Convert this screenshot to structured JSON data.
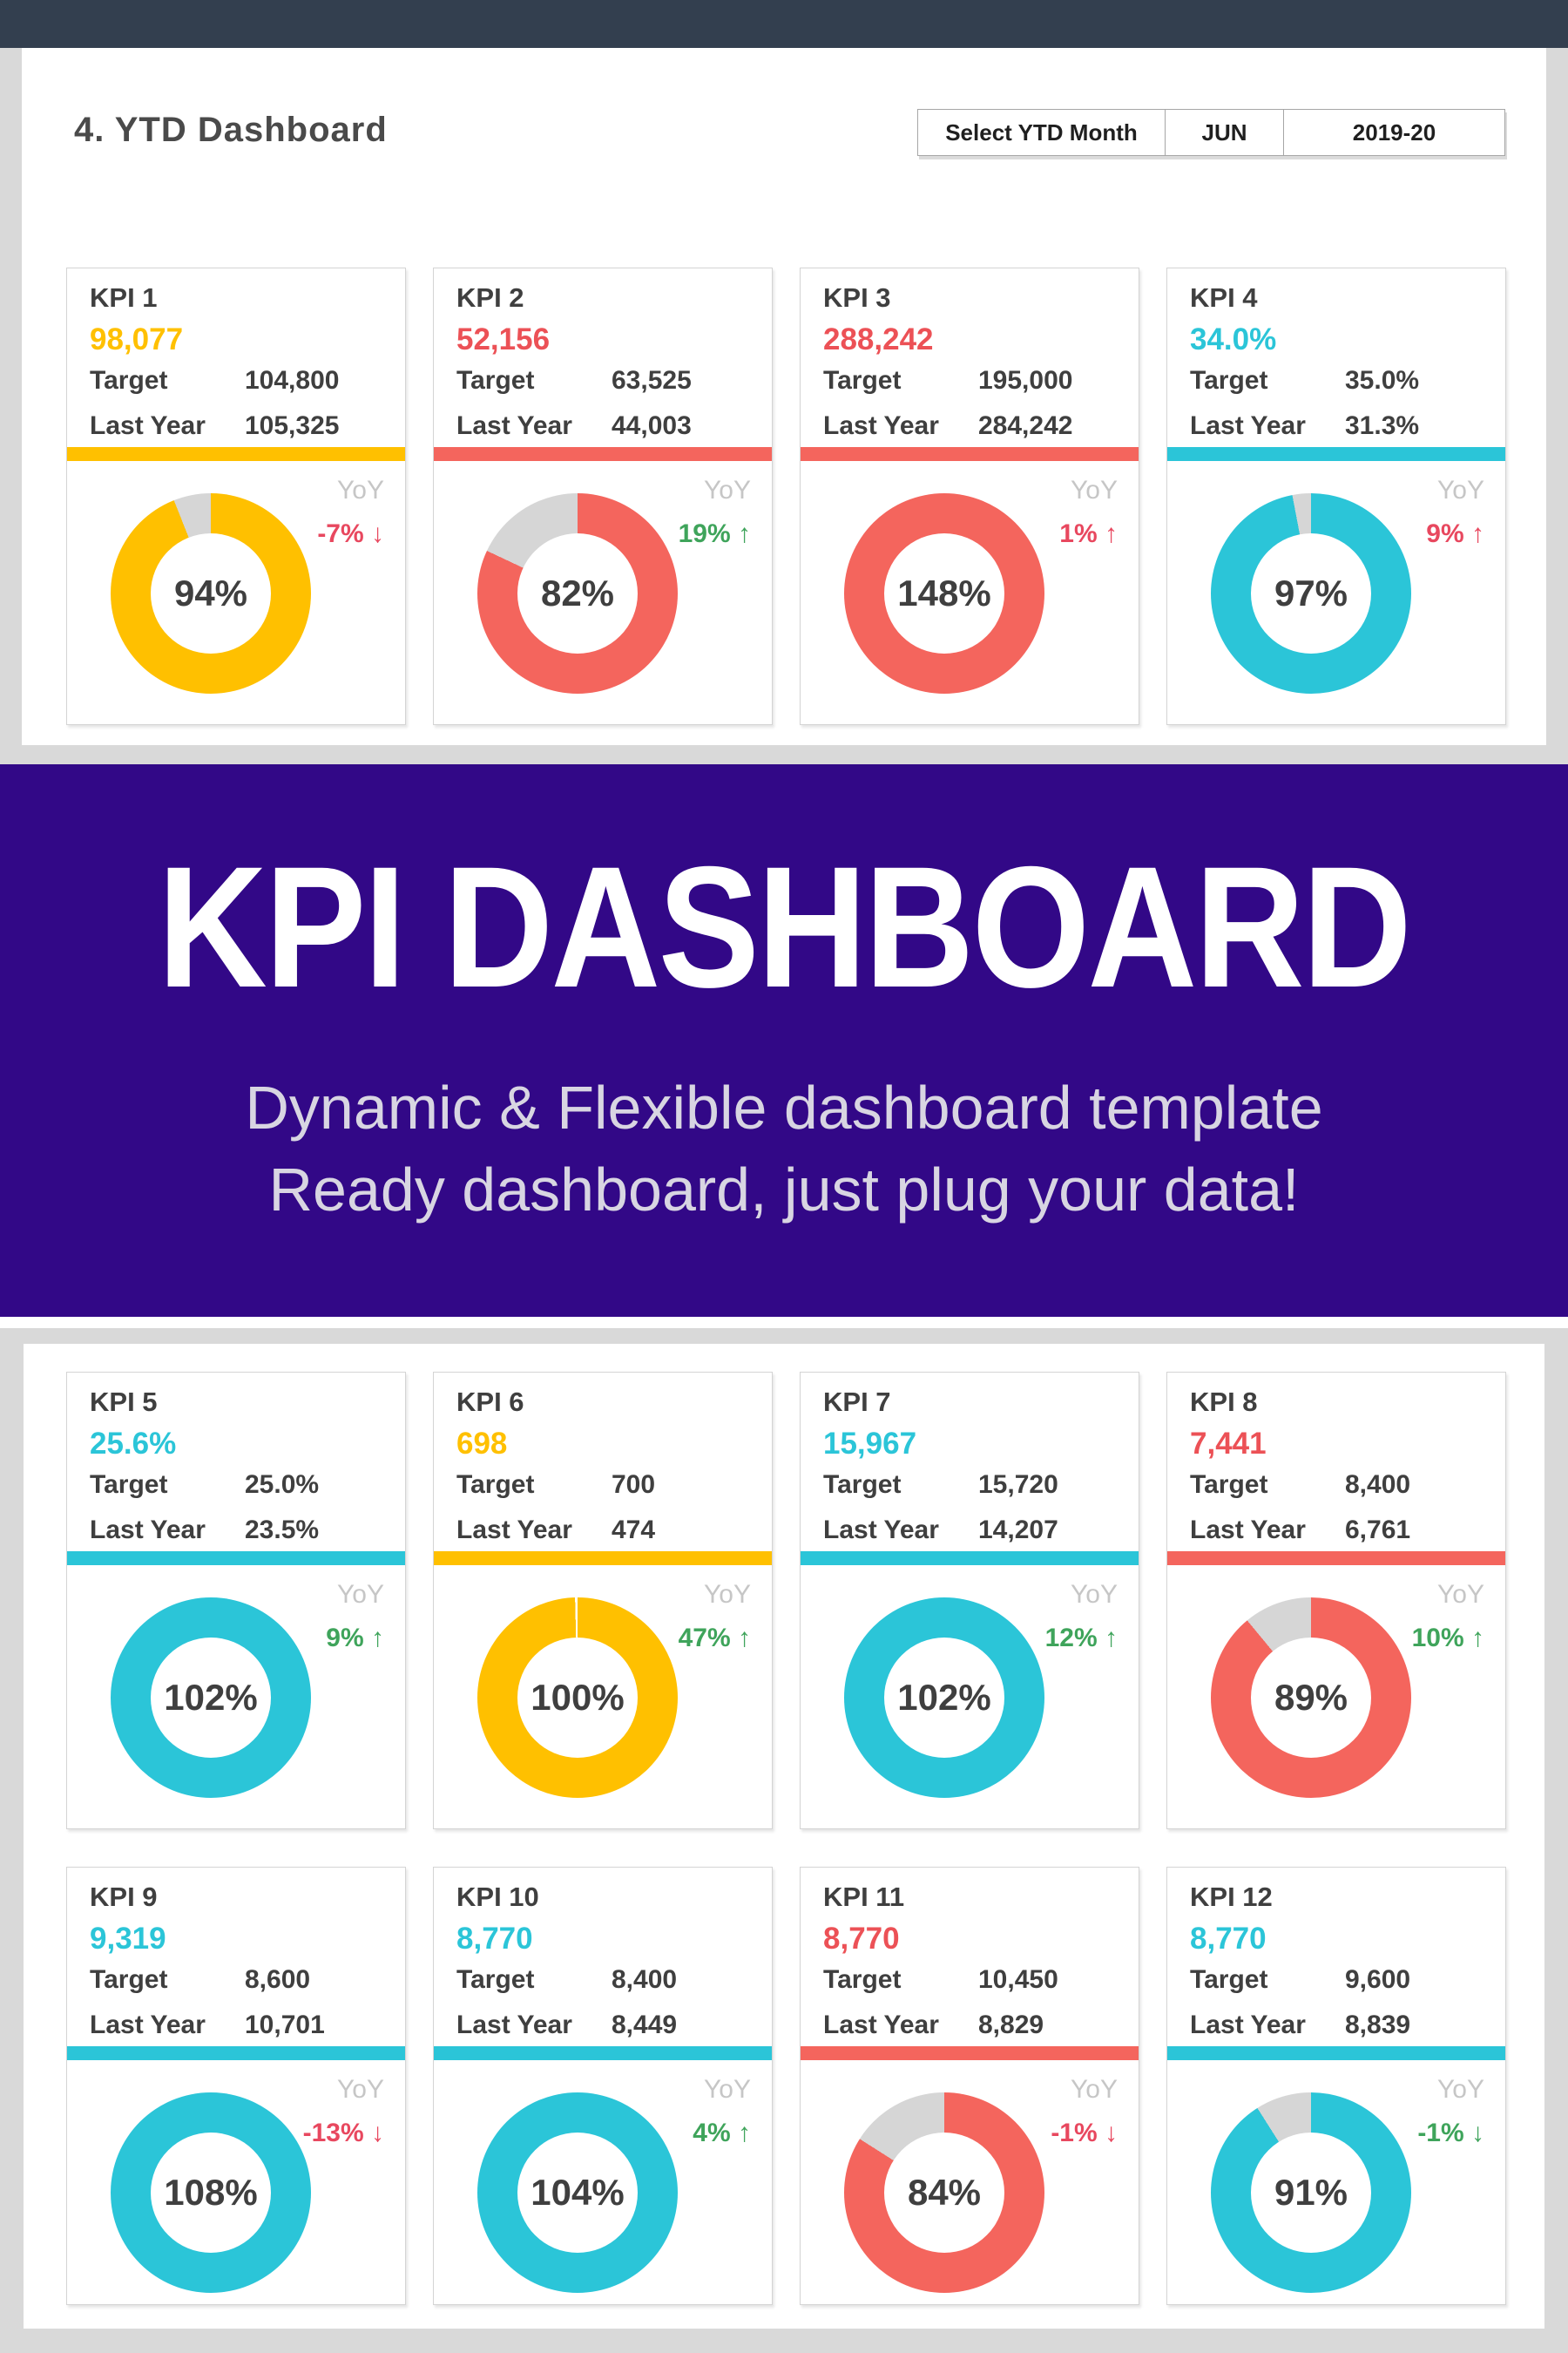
{
  "header": {
    "title": "4. YTD Dashboard",
    "selector": {
      "label": "Select YTD Month",
      "month": "JUN",
      "year": "2019-20"
    }
  },
  "banner": {
    "title": "KPI DASHBOARD",
    "subtitle_line1": "Dynamic & Flexible dashboard template",
    "subtitle_line2": "Ready dashboard, just plug your data!"
  },
  "labels": {
    "target": "Target",
    "last_year": "Last Year",
    "yoy": "YoY"
  },
  "colors": {
    "navy_bar": "#333F4F",
    "page_bg": "#D9D9D9",
    "purple": "#320887",
    "banner_title": "#FFFFFF",
    "banner_subtitle": "#D8D5E2",
    "card_text": "#3F3F3F",
    "yoy_label_gray": "#C6C6C6",
    "donut_rest_gray": "#D6D6D6",
    "fills": {
      "yellow": "#FFC000",
      "red": "#F4655D",
      "cyan": "#2BC5D8"
    },
    "texts": {
      "yellow": "#FFC000",
      "red": "#EC5156",
      "cyan": "#2BC5D8"
    },
    "yoy": {
      "green": "#3FA45B",
      "red": "#E8485F"
    }
  },
  "chart_data": {
    "type": "pie",
    "subtype": "donut-kpi-grid",
    "legend_position": "none",
    "kpis": [
      {
        "name": "KPI 1",
        "value": "98,077",
        "target": "104,800",
        "last_year": "105,325",
        "color": "yellow",
        "pct": 94,
        "pct_label": "94%",
        "yoy_label": "-7% ↓",
        "yoy_pct": -7,
        "yoy_color": "red"
      },
      {
        "name": "KPI 2",
        "value": "52,156",
        "target": "63,525",
        "last_year": "44,003",
        "color": "red",
        "pct": 82,
        "pct_label": "82%",
        "yoy_label": "19% ↑",
        "yoy_pct": 19,
        "yoy_color": "green"
      },
      {
        "name": "KPI 3",
        "value": "288,242",
        "target": "195,000",
        "last_year": "284,242",
        "color": "red",
        "pct": 148,
        "pct_label": "148%",
        "yoy_label": "1% ↑",
        "yoy_pct": 1,
        "yoy_color": "red"
      },
      {
        "name": "KPI 4",
        "value": "34.0%",
        "target": "35.0%",
        "last_year": "31.3%",
        "color": "cyan",
        "pct": 97,
        "pct_label": "97%",
        "yoy_label": "9% ↑",
        "yoy_pct": 9,
        "yoy_color": "red"
      },
      {
        "name": "KPI 5",
        "value": "25.6%",
        "target": "25.0%",
        "last_year": "23.5%",
        "color": "cyan",
        "pct": 102,
        "pct_label": "102%",
        "yoy_label": "9% ↑",
        "yoy_pct": 9,
        "yoy_color": "green"
      },
      {
        "name": "KPI 6",
        "value": "698",
        "target": "700",
        "last_year": "474",
        "color": "yellow",
        "pct": 100,
        "pct_label": "100%",
        "yoy_label": "47% ↑",
        "yoy_pct": 47,
        "yoy_color": "green"
      },
      {
        "name": "KPI 7",
        "value": "15,967",
        "target": "15,720",
        "last_year": "14,207",
        "color": "cyan",
        "pct": 102,
        "pct_label": "102%",
        "yoy_label": "12% ↑",
        "yoy_pct": 12,
        "yoy_color": "green"
      },
      {
        "name": "KPI 8",
        "value": "7,441",
        "target": "8,400",
        "last_year": "6,761",
        "color": "red",
        "pct": 89,
        "pct_label": "89%",
        "yoy_label": "10% ↑",
        "yoy_pct": 10,
        "yoy_color": "green"
      },
      {
        "name": "KPI 9",
        "value": "9,319",
        "target": "8,600",
        "last_year": "10,701",
        "color": "cyan",
        "pct": 108,
        "pct_label": "108%",
        "yoy_label": "-13% ↓",
        "yoy_pct": -13,
        "yoy_color": "red"
      },
      {
        "name": "KPI 10",
        "value": "8,770",
        "target": "8,400",
        "last_year": "8,449",
        "color": "cyan",
        "pct": 104,
        "pct_label": "104%",
        "yoy_label": "4% ↑",
        "yoy_pct": 4,
        "yoy_color": "green"
      },
      {
        "name": "KPI 11",
        "value": "8,770",
        "target": "10,450",
        "last_year": "8,829",
        "color": "red",
        "pct": 84,
        "pct_label": "84%",
        "yoy_label": "-1% ↓",
        "yoy_pct": -1,
        "yoy_color": "red"
      },
      {
        "name": "KPI 12",
        "value": "8,770",
        "target": "9,600",
        "last_year": "8,839",
        "color": "cyan",
        "pct": 91,
        "pct_label": "91%",
        "yoy_label": "-1% ↓",
        "yoy_pct": -1,
        "yoy_color": "green"
      }
    ]
  }
}
